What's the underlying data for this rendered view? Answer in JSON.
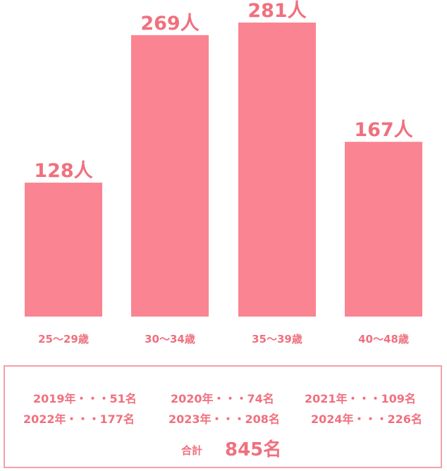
{
  "chart_data": {
    "type": "bar",
    "categories": [
      "25〜29歳",
      "30〜34歳",
      "35〜39歳",
      "40〜48歳"
    ],
    "values": [
      128,
      269,
      281,
      167
    ],
    "value_labels": [
      "128人",
      "269人",
      "281人",
      "167人"
    ],
    "ylim": [
      0,
      281
    ],
    "grid": false,
    "colors": {
      "bar": "#fa8492",
      "text": "#f0707e",
      "border": "#f5a0a8"
    }
  },
  "summary": {
    "years": [
      "2019年・・・51名",
      "2020年・・・74名",
      "2021年・・・109名",
      "2022年・・・177名",
      "2023年・・・208名",
      "2024年・・・226名"
    ],
    "total_label": "合計",
    "total_value": "845名"
  }
}
